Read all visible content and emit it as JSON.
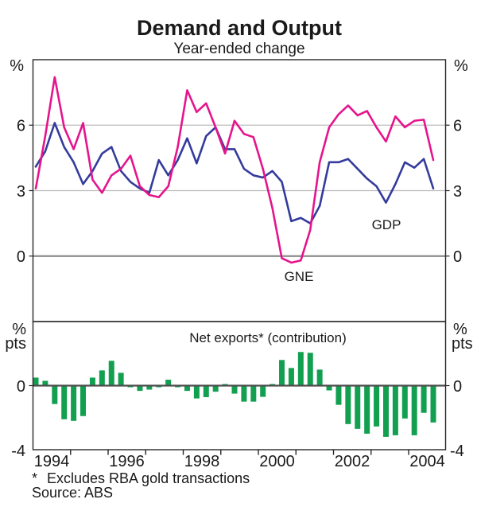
{
  "header": {
    "title": "Demand and Output",
    "subtitle": "Year-ended change"
  },
  "top_panel": {
    "unit": "%",
    "tick_labels": [
      "6",
      "3",
      "0"
    ]
  },
  "bottom_panel": {
    "unit_line1": "%",
    "unit_line2": "pts",
    "tick_labels": [
      "0",
      "-4"
    ]
  },
  "x_axis": {
    "labels": [
      "1994",
      "1996",
      "1998",
      "2000",
      "2002",
      "2004"
    ]
  },
  "footnotes": {
    "marker": "*",
    "note": "Excludes RBA gold transactions",
    "source": "Source: ABS"
  },
  "colors": {
    "gdp": "#343b9c",
    "gne": "#e6148c",
    "net_exports": "#12a050",
    "gridline": "#bdbdbd",
    "zero_top": "#8c8c8c",
    "zero_bottom": "#4d4d4d",
    "frame": "#262626"
  },
  "chart_data": {
    "type": "line+bar",
    "title": "Demand and Output",
    "subtitle": "Year-ended change",
    "x_quarters": [
      "1994Q1",
      "1994Q2",
      "1994Q3",
      "1994Q4",
      "1995Q1",
      "1995Q2",
      "1995Q3",
      "1995Q4",
      "1996Q1",
      "1996Q2",
      "1996Q3",
      "1996Q4",
      "1997Q1",
      "1997Q2",
      "1997Q3",
      "1997Q4",
      "1998Q1",
      "1998Q2",
      "1998Q3",
      "1998Q4",
      "1999Q1",
      "1999Q2",
      "1999Q3",
      "1999Q4",
      "2000Q1",
      "2000Q2",
      "2000Q3",
      "2000Q4",
      "2001Q1",
      "2001Q2",
      "2001Q3",
      "2001Q4",
      "2002Q1",
      "2002Q2",
      "2002Q3",
      "2002Q4",
      "2003Q1",
      "2003Q2",
      "2003Q3",
      "2003Q4",
      "2004Q1",
      "2004Q2",
      "2004Q3"
    ],
    "x_axis": {
      "tick_years": [
        1995,
        1996,
        1997,
        1998,
        1999,
        2000,
        2001,
        2002,
        2003,
        2004
      ],
      "label_years": [
        1994,
        1996,
        1998,
        2000,
        2002,
        2004
      ]
    },
    "panels": [
      {
        "type": "line",
        "ylabel": "%",
        "ylim": [
          -3,
          9
        ],
        "yticks_labeled": [
          0,
          3,
          6
        ],
        "gridlines": [
          3,
          6
        ],
        "zero_line": 0,
        "series": [
          {
            "name": "GDP",
            "color": "#343b9c",
            "values": [
              4.1,
              4.8,
              6.1,
              5.0,
              4.3,
              3.3,
              3.9,
              4.7,
              5.0,
              3.9,
              3.4,
              3.1,
              2.9,
              4.4,
              3.7,
              4.4,
              5.4,
              4.25,
              5.5,
              5.9,
              4.9,
              4.9,
              4.0,
              3.7,
              3.6,
              3.9,
              3.4,
              1.6,
              1.75,
              1.5,
              2.3,
              4.3,
              4.3,
              4.45,
              4.0,
              3.55,
              3.2,
              2.45,
              3.3,
              4.3,
              4.05,
              4.45,
              3.1
            ]
          },
          {
            "name": "GNE",
            "color": "#e6148c",
            "values": [
              3.1,
              5.5,
              8.2,
              5.9,
              4.9,
              6.1,
              3.5,
              2.9,
              3.7,
              4.0,
              4.6,
              3.2,
              2.8,
              2.7,
              3.2,
              5.0,
              7.6,
              6.6,
              7.0,
              5.9,
              4.7,
              6.2,
              5.6,
              5.45,
              4.0,
              2.2,
              -0.1,
              -0.3,
              -0.2,
              1.2,
              4.3,
              5.9,
              6.5,
              6.9,
              6.45,
              6.65,
              5.9,
              5.25,
              6.4,
              5.9,
              6.2,
              6.25,
              4.4
            ]
          }
        ]
      },
      {
        "type": "bar",
        "ylabel": "% pts",
        "ylim": [
          -4,
          4
        ],
        "yticks_labeled": [
          -4,
          0
        ],
        "zero_line": 0,
        "series": [
          {
            "name": "Net exports* (contribution)",
            "color": "#12a050",
            "values": [
              0.5,
              0.3,
              -1.15,
              -2.1,
              -2.2,
              -1.9,
              0.5,
              0.95,
              1.55,
              0.8,
              -0.1,
              -0.33,
              -0.25,
              -0.1,
              0.37,
              -0.1,
              -0.33,
              -0.8,
              -0.72,
              -0.38,
              0.1,
              -0.5,
              -1.0,
              -1.0,
              -0.7,
              0.1,
              1.6,
              1.1,
              2.1,
              2.05,
              1.0,
              -0.3,
              -1.2,
              -2.4,
              -2.7,
              -3.0,
              -2.55,
              -3.2,
              -3.1,
              -2.05,
              -3.1,
              -1.7,
              -2.3
            ]
          }
        ]
      }
    ]
  }
}
